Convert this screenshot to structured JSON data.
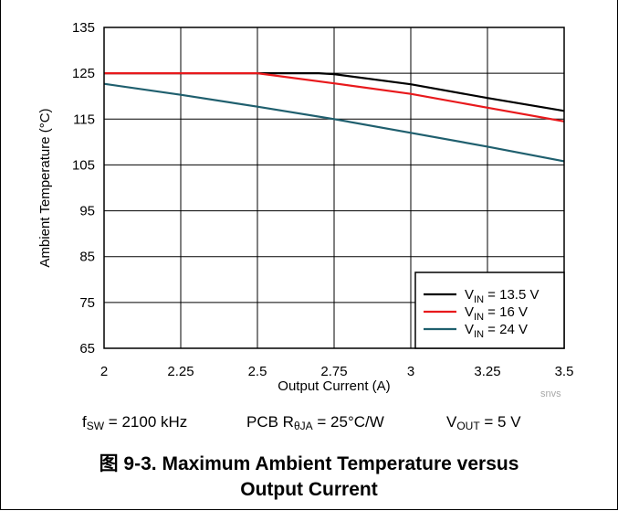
{
  "chart_data": {
    "type": "line",
    "title": "",
    "xlabel": "Output Current (A)",
    "ylabel": "Ambient Temperature (°C)",
    "xlim": [
      2,
      3.5
    ],
    "ylim": [
      65,
      135
    ],
    "x_ticks": [
      "2",
      "2.25",
      "2.5",
      "2.75",
      "3",
      "3.25",
      "3.5"
    ],
    "y_ticks": [
      "65",
      "75",
      "85",
      "95",
      "105",
      "115",
      "125",
      "135"
    ],
    "grid": true,
    "legend_position": "bottom-right",
    "series": [
      {
        "name": "V_IN = 13.5 V",
        "name_main": "V",
        "name_sub": "IN",
        "name_rest": " = 13.5 V",
        "color": "#000000",
        "x": [
          2,
          2.25,
          2.5,
          2.7,
          2.75,
          3,
          3.25,
          3.5
        ],
        "y": [
          125,
          125,
          125,
          125,
          124.8,
          122.6,
          119.6,
          116.8
        ]
      },
      {
        "name": "V_IN = 16 V",
        "name_main": "V",
        "name_sub": "IN",
        "name_rest": " = 16 V",
        "color": "#e8191c",
        "x": [
          2,
          2.25,
          2.5,
          2.75,
          3,
          3.25,
          3.5
        ],
        "y": [
          125,
          125,
          125,
          122.8,
          120.5,
          117.5,
          114.5
        ]
      },
      {
        "name": "V_IN = 24 V",
        "name_main": "V",
        "name_sub": "IN",
        "name_rest": " = 24 V",
        "color": "#1f5f6e",
        "x": [
          2,
          2.25,
          2.5,
          2.75,
          3,
          3.25,
          3.5
        ],
        "y": [
          122.7,
          120.3,
          117.7,
          115.0,
          112.0,
          109.0,
          105.8
        ]
      }
    ]
  },
  "conditions": {
    "fsw": {
      "main": "f",
      "sub": "SW",
      "rest": " = 2100 kHz"
    },
    "pcb": {
      "main": "PCB R",
      "sub": "θJA",
      "rest": " = 25°C/W"
    },
    "vout": {
      "main": "V",
      "sub": "OUT",
      "rest": " = 5 V"
    }
  },
  "watermark": "snvs",
  "caption": {
    "line1": "图 9-3. Maximum Ambient Temperature versus",
    "line2": "Output Current"
  }
}
